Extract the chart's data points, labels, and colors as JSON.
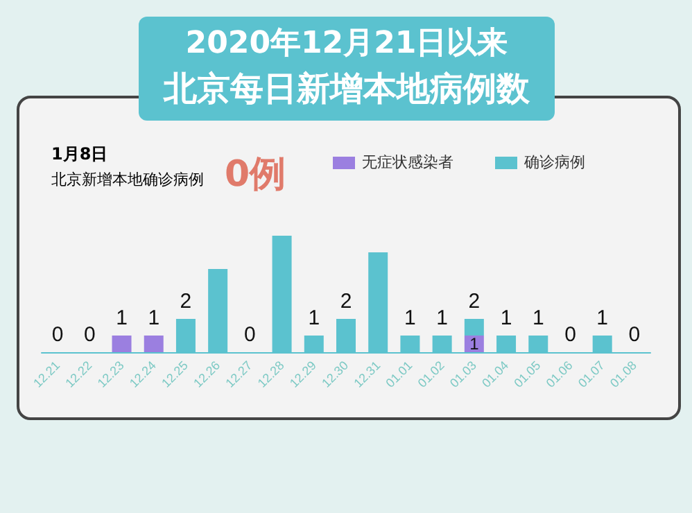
{
  "chart_data": {
    "type": "bar",
    "title": "2020年12月21日以来",
    "subtitle": "北京每日新增本地病例数",
    "annotations": [
      "1月8日",
      "北京新增本地确诊病例",
      "0例"
    ],
    "categories": [
      "12.21",
      "12.22",
      "12.23",
      "12.24",
      "12.25",
      "12.26",
      "12.27",
      "12.28",
      "12.29",
      "12.30",
      "12.31",
      "01.01",
      "01.02",
      "01.03",
      "01.04",
      "01.05",
      "01.06",
      "01.07",
      "01.08"
    ],
    "stacked": true,
    "series": [
      {
        "name": "无症状感染者",
        "color": "#9b7fe0",
        "values": [
          0,
          0,
          1,
          1,
          0,
          0,
          0,
          0,
          0,
          0,
          0,
          0,
          0,
          1,
          0,
          0,
          0,
          0,
          0
        ],
        "value_labels": [
          null,
          null,
          null,
          null,
          null,
          null,
          null,
          null,
          null,
          null,
          null,
          null,
          null,
          "1",
          null,
          null,
          null,
          null,
          null
        ]
      },
      {
        "name": "确诊病例",
        "color": "#5bc2cf",
        "values": [
          0,
          0,
          0,
          0,
          2,
          5,
          0,
          7,
          1,
          2,
          6,
          1,
          1,
          1,
          1,
          1,
          0,
          1,
          0
        ]
      }
    ],
    "totals": [
      "0",
      "0",
      "1",
      "1",
      "2",
      null,
      "0",
      null,
      "1",
      "2",
      null,
      "1",
      "1",
      "2",
      "1",
      "1",
      "0",
      "1",
      "0"
    ],
    "legend": "top right"
  }
}
